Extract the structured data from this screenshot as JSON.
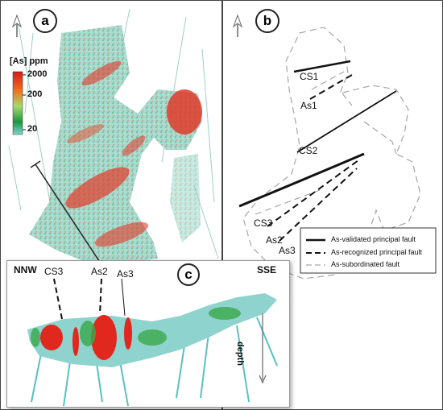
{
  "panel_a": {
    "label": "a",
    "colorbar": {
      "title": "[As] ppm",
      "ticks": [
        "2000",
        "200",
        "20"
      ],
      "colors": [
        "#d7191c",
        "#f07020",
        "#a6d96a",
        "#1a9641",
        "#7fd6d6"
      ]
    }
  },
  "panel_b": {
    "label": "b",
    "fault_labels": [
      "CS1",
      "As1",
      "CS2",
      "CS3",
      "As2",
      "As3"
    ],
    "legend": {
      "items": [
        {
          "style": "solid",
          "label": "As-validated principal fault"
        },
        {
          "style": "dashed",
          "label": "As-recognized principal fault"
        },
        {
          "style": "dashed-gray",
          "label": "As-subordinated fault"
        }
      ]
    }
  },
  "panel_c": {
    "label": "c",
    "left_direction": "NNW",
    "right_direction": "SSE",
    "fault_labels": [
      "CS3",
      "As2",
      "As3"
    ],
    "depth_label": "depth"
  },
  "icons": [
    "north-arrow-icon",
    "north-arrow-icon"
  ]
}
